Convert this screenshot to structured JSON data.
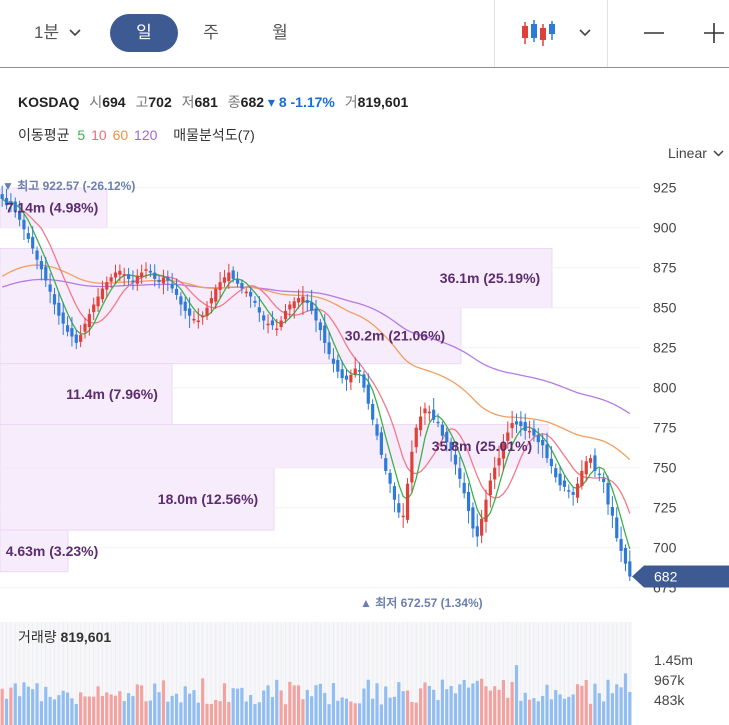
{
  "toolbar": {
    "timeframe_min": "1분",
    "timeframe_day": "일",
    "timeframe_week": "주",
    "timeframe_month": "월"
  },
  "info": {
    "symbol": "KOSDAQ",
    "open_label": "시",
    "open": "694",
    "high_label": "고",
    "high": "702",
    "low_label": "저",
    "low": "681",
    "close_label": "종",
    "close": "682",
    "change": "8",
    "change_pct": "-1.17%",
    "volume_label": "거",
    "volume": "819,601"
  },
  "ma": {
    "label": "이동평균",
    "p5": "5",
    "p10": "10",
    "p60": "60",
    "p120": "120",
    "vp_label": "매물분석도(7)"
  },
  "scale_label": "Linear",
  "chart_data": {
    "type": "candlestick",
    "y_ticks": [
      925,
      900,
      875,
      850,
      825,
      800,
      775,
      750,
      725,
      700,
      675
    ],
    "y_range": [
      672,
      930
    ],
    "last_price": 682,
    "high_marker": "▼ 최고 922.57 (-26.12%)",
    "low_marker": "▲ 최저 672.57 (1.34%)",
    "closes": [
      918,
      914,
      916,
      910,
      905,
      899,
      893,
      887,
      880,
      874,
      867,
      860,
      852,
      845,
      840,
      835,
      832,
      828,
      833,
      840,
      846,
      852,
      857,
      862,
      866,
      869,
      872,
      873,
      871,
      868,
      866,
      870,
      872,
      874,
      872,
      868,
      866,
      869,
      867,
      862,
      858,
      852,
      848,
      845,
      843,
      842,
      845,
      850,
      856,
      862,
      866,
      869,
      872,
      868,
      865,
      862,
      860,
      857,
      853,
      847,
      842,
      840,
      839,
      837,
      842,
      848,
      852,
      854,
      856,
      857,
      853,
      848,
      842,
      836,
      828,
      821,
      815,
      810,
      806,
      805,
      808,
      812,
      810,
      800,
      790,
      780,
      770,
      758,
      748,
      740,
      730,
      722,
      720,
      740,
      760,
      775,
      782,
      787,
      785,
      780,
      778,
      770,
      766,
      761,
      752,
      743,
      734,
      723,
      712,
      707,
      718,
      730,
      742,
      750,
      756,
      765,
      772,
      778,
      777,
      776,
      773,
      773,
      770,
      766,
      764,
      756,
      751,
      744,
      739,
      738,
      735,
      733,
      740,
      748,
      754,
      756,
      748,
      746,
      741,
      727,
      720,
      706,
      698,
      690,
      682
    ],
    "volume_axis": [
      "1.45m",
      "967k",
      "483k"
    ],
    "volume_title": "거래량",
    "volume_value": "819,601",
    "volume_profile": [
      {
        "label": "7.14m (4.98%)"
      },
      {
        "label": "36.1m (25.19%)"
      },
      {
        "label": "30.2m (21.06%)"
      },
      {
        "label": "11.4m (7.96%)"
      },
      {
        "label": "35.8m (25.01%)"
      },
      {
        "label": "18.0m (12.56%)"
      },
      {
        "label": "4.63m (3.23%)"
      }
    ],
    "colors": {
      "up": "#e0403a",
      "down": "#2e7ad8",
      "ma5": "#3cb04a",
      "ma10": "#f07a8a",
      "ma60": "#f0a060",
      "ma120": "#b47ae6",
      "profile": "#f7ecfb"
    }
  }
}
